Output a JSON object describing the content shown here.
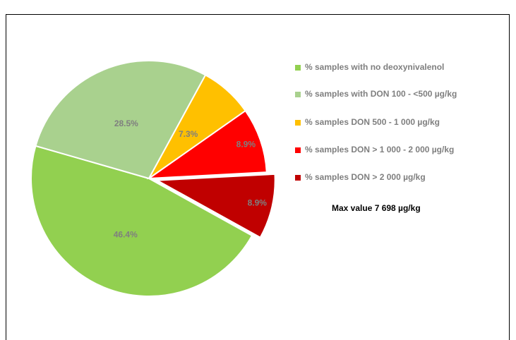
{
  "chart_data": {
    "type": "pie",
    "categories": [
      "% samples with no deoxynivalenol",
      "% samples with DON  100 - <500 µg/kg",
      "% samples DON  500 - 1 000 µg/kg",
      "% samples DON > 1 000 - 2 000 µg/kg",
      "% samples DON > 2 000 µg/kg"
    ],
    "values": [
      46.4,
      28.5,
      7.3,
      8.9,
      8.9
    ],
    "value_labels": [
      "46.4%",
      "28.5%",
      "7.3%",
      "8.9%",
      "8.9%"
    ],
    "colors": [
      "#92d050",
      "#a9d18e",
      "#ffc000",
      "#ff0000",
      "#c00000"
    ],
    "annotation": "Max value 7 698 µg/kg",
    "legend": "right"
  }
}
